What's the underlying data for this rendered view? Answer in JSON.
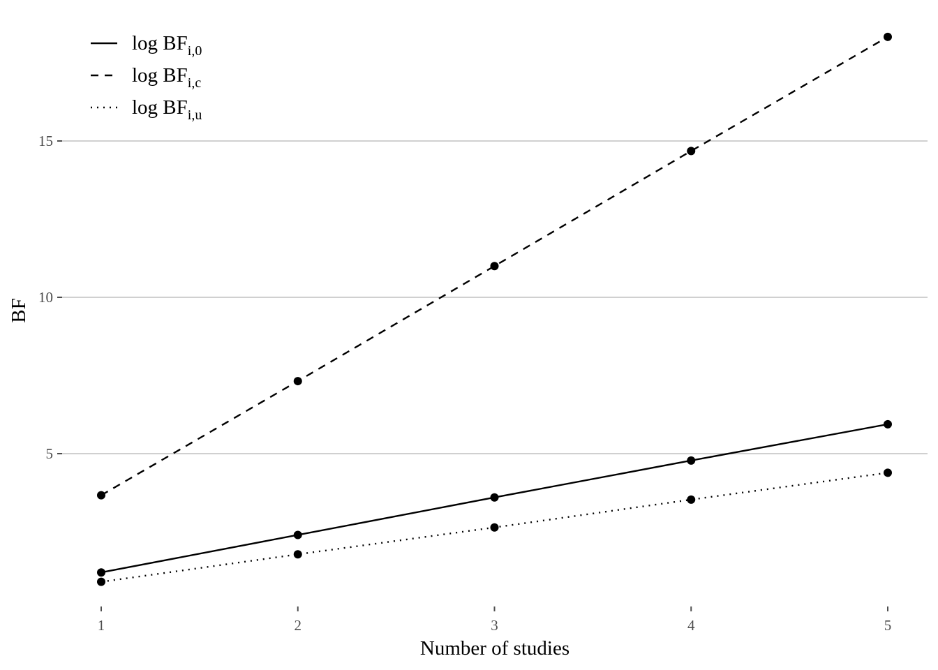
{
  "chart_data": {
    "type": "line",
    "x": [
      1,
      2,
      3,
      4,
      5
    ],
    "xlabel": "Number of studies",
    "ylabel": "BF",
    "xticks": [
      "1",
      "2",
      "3",
      "4",
      "5"
    ],
    "yticks": [
      "5",
      "10",
      "15"
    ],
    "ytick_values": [
      5,
      10,
      15
    ],
    "xlim": [
      0.9,
      5.1
    ],
    "ylim": [
      0.5,
      19.0
    ],
    "grid": "horizontal major only",
    "legend_position": "top-left",
    "series": [
      {
        "label_main": "log BF",
        "label_sub": "i,0",
        "linestyle": "solid",
        "values": [
          1.2,
          2.4,
          3.6,
          4.78,
          5.94
        ]
      },
      {
        "label_main": "log BF",
        "label_sub": "i,c",
        "linestyle": "dashed",
        "values": [
          3.67,
          7.32,
          11.0,
          14.68,
          18.33
        ]
      },
      {
        "label_main": "log BF",
        "label_sub": "i,u",
        "linestyle": "dotted",
        "values": [
          0.9,
          1.78,
          2.64,
          3.53,
          4.39
        ]
      }
    ],
    "colors": {
      "line": "#000000",
      "grid": "#d0d0d0",
      "tick": "#4d4d4d"
    }
  }
}
